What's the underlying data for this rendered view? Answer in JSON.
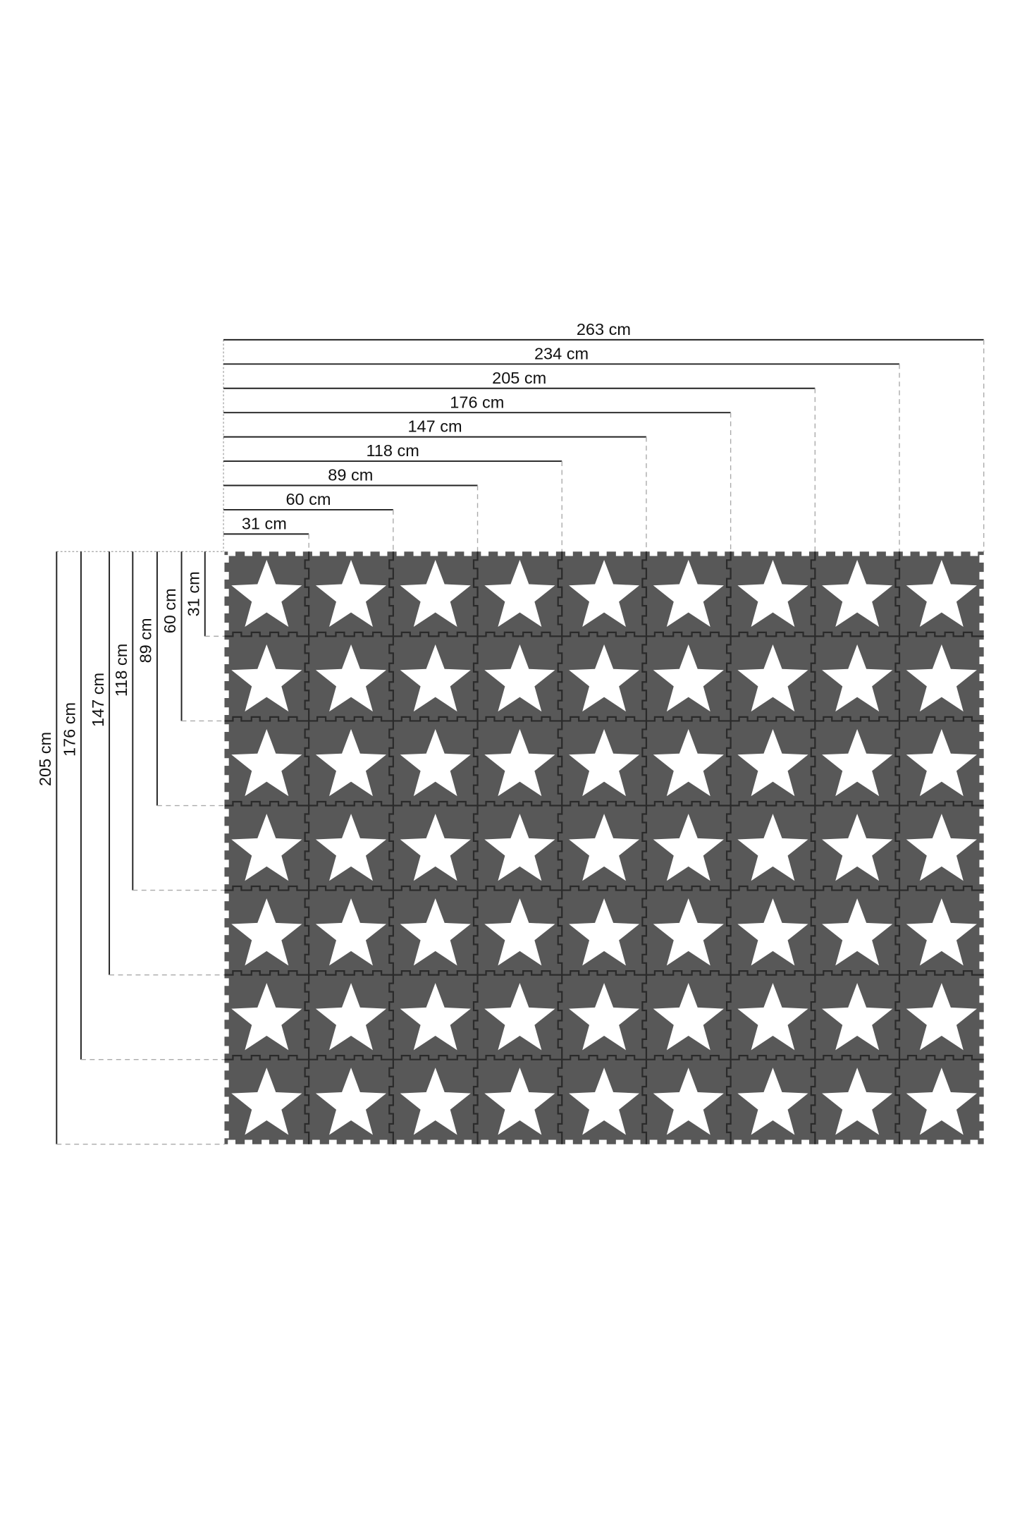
{
  "mat": {
    "columns": 9,
    "rows": 7,
    "tile_color": "#585858",
    "star_color": "#ffffff",
    "seam_color": "#2a2a2a",
    "icon": "star-icon"
  },
  "width_dimensions": [
    "31 cm",
    "60 cm",
    "89 cm",
    "118 cm",
    "147 cm",
    "176 cm",
    "205 cm",
    "234 cm",
    "263 cm"
  ],
  "height_dimensions": [
    "31 cm",
    "60 cm",
    "89 cm",
    "118 cm",
    "147 cm",
    "176 cm",
    "205 cm"
  ]
}
